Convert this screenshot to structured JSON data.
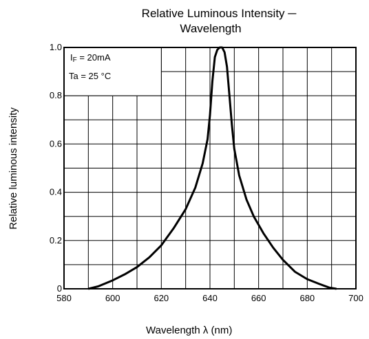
{
  "chart_data": {
    "type": "line",
    "title_line1": "Relative Luminous Intensity  ─",
    "title_line2": "Wavelength",
    "xlabel": "Wavelength   λ    (nm)",
    "ylabel": "Relative luminous intensity",
    "xlim": [
      580,
      700
    ],
    "ylim": [
      0,
      1.0
    ],
    "x_ticks": [
      {
        "value": 580,
        "label": "580"
      },
      {
        "value": 600,
        "label": "600"
      },
      {
        "value": 620,
        "label": "620"
      },
      {
        "value": 640,
        "label": "640"
      },
      {
        "value": 660,
        "label": "660"
      },
      {
        "value": 680,
        "label": "680"
      },
      {
        "value": 700,
        "label": "700"
      }
    ],
    "y_ticks": [
      {
        "value": 0,
        "label": "0"
      },
      {
        "value": 0.2,
        "label": "0.2"
      },
      {
        "value": 0.4,
        "label": "0.4"
      },
      {
        "value": 0.6,
        "label": "0.6"
      },
      {
        "value": 0.8,
        "label": "0.8"
      },
      {
        "value": 1.0,
        "label": "1.0"
      }
    ],
    "grid": true,
    "grid_x_step": 10,
    "grid_y_step": 0.1,
    "annotations": {
      "if_prefix": "I",
      "if_sub": "F",
      "if_value": " = 20mA",
      "ta": "Ta = 25 °C"
    },
    "series": [
      {
        "x": [
          590,
          594,
          600,
          605,
          610,
          615,
          620,
          625,
          630,
          634,
          637,
          639,
          640,
          641,
          642,
          643,
          644,
          645,
          646,
          647,
          648,
          649,
          650,
          652,
          655,
          658,
          662,
          666,
          670,
          675,
          680,
          685,
          689,
          692
        ],
        "y": [
          0.0,
          0.01,
          0.035,
          0.06,
          0.09,
          0.13,
          0.18,
          0.25,
          0.33,
          0.42,
          0.52,
          0.62,
          0.72,
          0.86,
          0.96,
          0.99,
          1.0,
          1.0,
          0.98,
          0.92,
          0.8,
          0.68,
          0.58,
          0.47,
          0.37,
          0.3,
          0.23,
          0.17,
          0.12,
          0.07,
          0.04,
          0.02,
          0.005,
          0.0
        ]
      }
    ]
  }
}
